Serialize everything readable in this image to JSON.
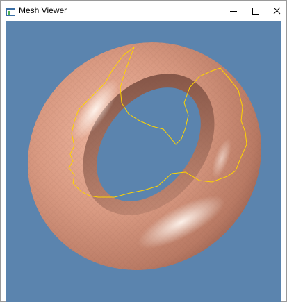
{
  "window": {
    "title": "Mesh Viewer",
    "icon": "app-window-icon",
    "controls": [
      "minimize-icon",
      "maximize-icon",
      "close-icon"
    ]
  },
  "viewport": {
    "background_color": "#5b84ae",
    "mesh_color": "#d99a82",
    "highlight_color": "#ffe9dd",
    "boundary_curve_color": "#ffd400",
    "object": "torus"
  }
}
